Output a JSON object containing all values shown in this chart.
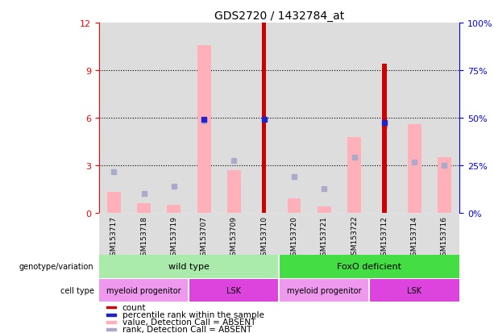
{
  "title": "GDS2720 / 1432784_at",
  "samples": [
    "GSM153717",
    "GSM153718",
    "GSM153719",
    "GSM153707",
    "GSM153709",
    "GSM153710",
    "GSM153720",
    "GSM153721",
    "GSM153722",
    "GSM153712",
    "GSM153714",
    "GSM153716"
  ],
  "count_values": [
    0,
    0,
    0,
    0,
    0,
    12,
    0,
    0,
    0,
    9.4,
    0,
    0
  ],
  "percentile_rank": [
    null,
    null,
    null,
    5.9,
    null,
    5.9,
    null,
    null,
    null,
    5.7,
    null,
    null
  ],
  "pink_bar_values": [
    1.3,
    0.6,
    0.5,
    10.6,
    2.7,
    0,
    0.9,
    0.4,
    4.8,
    0,
    5.6,
    3.5
  ],
  "light_blue_values": [
    2.6,
    1.2,
    1.7,
    5.8,
    3.3,
    0,
    2.3,
    1.5,
    3.5,
    5.5,
    3.2,
    3.0
  ],
  "ylim_left": [
    0,
    12
  ],
  "ylim_right": [
    0,
    100
  ],
  "yticks_left": [
    0,
    3,
    6,
    9,
    12
  ],
  "yticks_right": [
    0,
    25,
    50,
    75,
    100
  ],
  "ytick_labels_right": [
    "0%",
    "25%",
    "50%",
    "75%",
    "100%"
  ],
  "colors": {
    "count": "#CC0000",
    "percentile": "#2222CC",
    "pink_bar": "#FFB0B8",
    "light_blue": "#AAAACC",
    "wild_type_bg": "#AAEAAA",
    "foxo_bg": "#44DD44",
    "myeloid_bg": "#EE99EE",
    "lsk_bg": "#DD44DD",
    "sample_col_bg": "#DDDDDD",
    "white": "#FFFFFF"
  },
  "genotype_groups": [
    {
      "label": "wild type",
      "start": 0,
      "end": 6,
      "color": "#AAEAAA"
    },
    {
      "label": "FoxO deficient",
      "start": 6,
      "end": 12,
      "color": "#44DD44"
    }
  ],
  "cell_type_groups": [
    {
      "label": "myeloid progenitor",
      "start": 0,
      "end": 3,
      "color": "#EE99EE"
    },
    {
      "label": "LSK",
      "start": 3,
      "end": 6,
      "color": "#DD44DD"
    },
    {
      "label": "myeloid progenitor",
      "start": 6,
      "end": 9,
      "color": "#EE99EE"
    },
    {
      "label": "LSK",
      "start": 9,
      "end": 12,
      "color": "#DD44DD"
    }
  ],
  "legend_items": [
    {
      "color": "#CC0000",
      "label": "count",
      "marker": "square"
    },
    {
      "color": "#2222CC",
      "label": "percentile rank within the sample",
      "marker": "square"
    },
    {
      "color": "#FFB0B8",
      "label": "value, Detection Call = ABSENT",
      "marker": "square"
    },
    {
      "color": "#AAAACC",
      "label": "rank, Detection Call = ABSENT",
      "marker": "square"
    }
  ]
}
